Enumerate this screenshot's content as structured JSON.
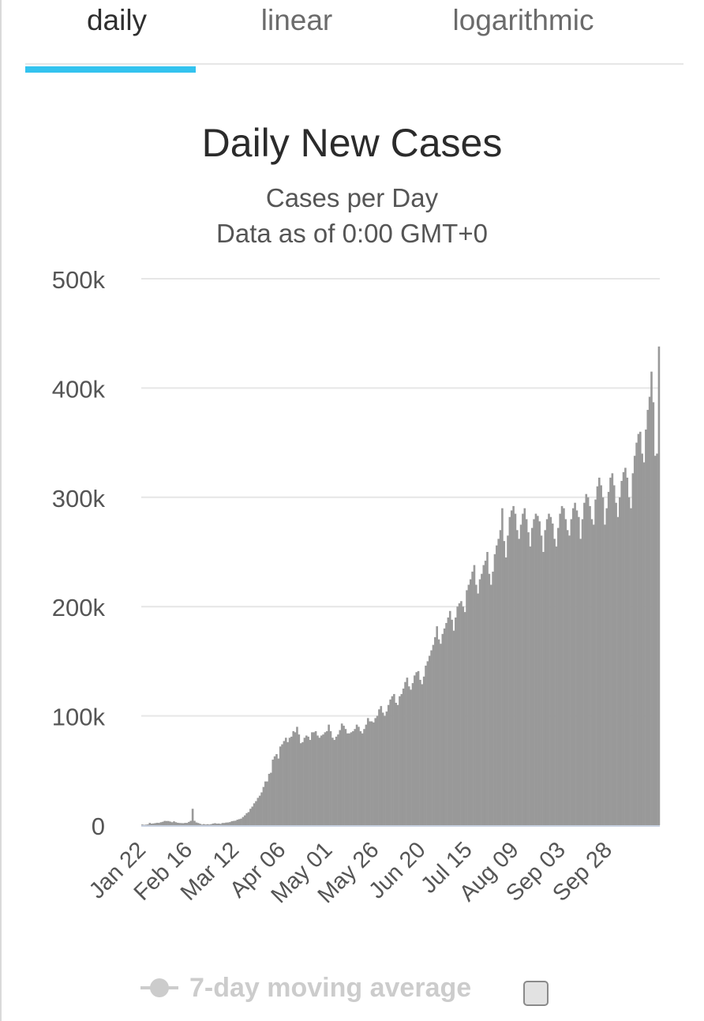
{
  "tabs": [
    {
      "label": "daily",
      "active": true
    },
    {
      "label": "linear",
      "active": false
    },
    {
      "label": "logarithmic",
      "active": false
    }
  ],
  "accent_color": "#33c3ef",
  "bar_color": "#999999",
  "legend": {
    "label": "7-day moving average",
    "enabled": false
  },
  "chart_data": {
    "type": "bar",
    "title": "Daily New Cases",
    "subtitle_lines": [
      "Cases per Day",
      "Data as of 0:00 GMT+0"
    ],
    "ylim": [
      0,
      500000
    ],
    "ytick_values": [
      0,
      100000,
      200000,
      300000,
      400000,
      500000
    ],
    "ytick_labels": [
      "0",
      "100k",
      "200k",
      "300k",
      "400k",
      "500k"
    ],
    "x_start_date": "2020-01-22",
    "xtick_labels": [
      "Jan 22",
      "Feb 16",
      "Mar 12",
      "Apr 06",
      "May 01",
      "May 26",
      "Jun 20",
      "Jul 15",
      "Aug 09",
      "Sep 03",
      "Sep 28"
    ],
    "grid": true,
    "series": [
      {
        "values": [
          600,
          300,
          500,
          700,
          2100,
          1400,
          1600,
          1900,
          2200,
          2100,
          2700,
          3100,
          3900,
          3800,
          3800,
          3300,
          2700,
          3500,
          2700,
          2200,
          2000,
          1900,
          1800,
          2100,
          2100,
          3000,
          4000,
          15000,
          4000,
          2500,
          2000,
          1300,
          600,
          1000,
          600,
          900,
          600,
          1000,
          1500,
          1800,
          1400,
          1500,
          1200,
          2000,
          2000,
          2400,
          2500,
          2800,
          3600,
          3900,
          4100,
          5000,
          5500,
          6000,
          7500,
          9000,
          11000,
          12000,
          15000,
          17000,
          20000,
          22000,
          25000,
          27000,
          30000,
          35000,
          40000,
          40000,
          47000,
          48000,
          60000,
          63000,
          65000,
          61000,
          72000,
          74000,
          77000,
          80000,
          76000,
          80000,
          81000,
          86000,
          85000,
          90000,
          83000,
          75000,
          76000,
          80000,
          82000,
          81000,
          78000,
          85000,
          85000,
          86000,
          82000,
          80000,
          82000,
          83000,
          85000,
          86000,
          92000,
          86000,
          80000,
          78000,
          81000,
          83000,
          87000,
          93000,
          91000,
          88000,
          84000,
          84000,
          85000,
          86000,
          88000,
          92000,
          90000,
          86000,
          84000,
          88000,
          92000,
          98000,
          95000,
          95000,
          94000,
          98000,
          100000,
          106000,
          109000,
          103000,
          100000,
          104000,
          110000,
          115000,
          118000,
          120000,
          112000,
          110000,
          118000,
          120000,
          125000,
          131000,
          135000,
          127000,
          124000,
          130000,
          137000,
          140000,
          141000,
          133000,
          129000,
          136000,
          146000,
          150000,
          155000,
          160000,
          165000,
          172000,
          182000,
          170000,
          166000,
          175000,
          180000,
          185000,
          190000,
          196000,
          188000,
          178000,
          190000,
          200000,
          203000,
          205000,
          200000,
          195000,
          215000,
          220000,
          225000,
          232000,
          238000,
          220000,
          212000,
          225000,
          230000,
          238000,
          242000,
          250000,
          230000,
          220000,
          232000,
          248000,
          256000,
          262000,
          270000,
          290000,
          260000,
          245000,
          265000,
          282000,
          288000,
          292000,
          285000,
          270000,
          262000,
          275000,
          285000,
          290000,
          280000,
          268000,
          255000,
          272000,
          280000,
          285000,
          283000,
          278000,
          265000,
          250000,
          270000,
          280000,
          285000,
          282000,
          276000,
          262000,
          255000,
          272000,
          285000,
          292000,
          290000,
          280000,
          270000,
          265000,
          280000,
          290000,
          295000,
          288000,
          282000,
          262000,
          280000,
          295000,
          303000,
          300000,
          292000,
          280000,
          275000,
          298000,
          310000,
          318000,
          311000,
          300000,
          275000,
          290000,
          305000,
          318000,
          322000,
          311000,
          295000,
          282000,
          300000,
          315000,
          323000,
          327000,
          318000,
          300000,
          290000,
          322000,
          338000,
          350000,
          358000,
          360000,
          340000,
          332000,
          362000,
          380000,
          392000,
          415000,
          387000,
          338000,
          340000,
          438000
        ]
      }
    ]
  }
}
